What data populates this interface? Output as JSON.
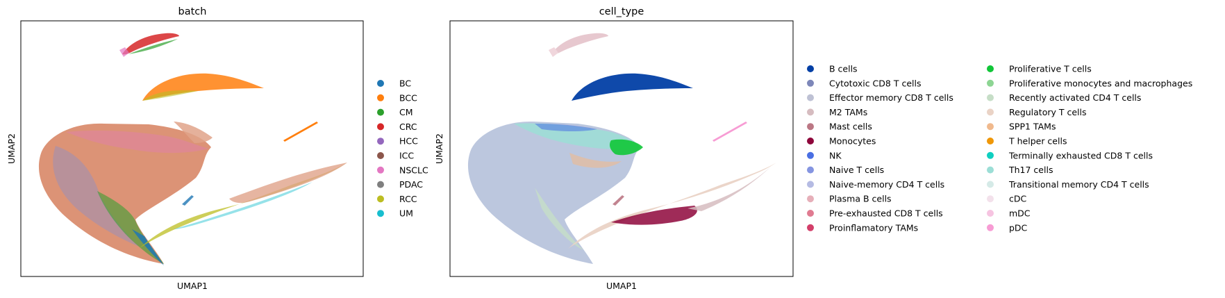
{
  "chart_data": [
    {
      "type": "scatter",
      "title": "batch",
      "xlabel": "UMAP1",
      "ylabel": "UMAP2",
      "grid": false,
      "legend_placement": "right, outside plot, 1 column",
      "legend": [
        {
          "label": "BC",
          "color": "#1f77b4"
        },
        {
          "label": "BCC",
          "color": "#ff7f0e"
        },
        {
          "label": "CM",
          "color": "#2ca02c"
        },
        {
          "label": "CRC",
          "color": "#d62728"
        },
        {
          "label": "HCC",
          "color": "#9467bd"
        },
        {
          "label": "ICC",
          "color": "#8c564b"
        },
        {
          "label": "NSCLC",
          "color": "#e377c2"
        },
        {
          "label": "PDAC",
          "color": "#7f7f7f"
        },
        {
          "label": "RCC",
          "color": "#bcbd22"
        },
        {
          "label": "UM",
          "color": "#17becf"
        }
      ]
    },
    {
      "type": "scatter",
      "title": "cell_type",
      "xlabel": "UMAP1",
      "ylabel": "UMAP2",
      "grid": false,
      "legend_placement": "right, outside plot, 2 columns",
      "legend": [
        {
          "label": "B cells",
          "color": "#023fa5"
        },
        {
          "label": "Cytotoxic CD8 T cells",
          "color": "#7d87b9"
        },
        {
          "label": "Effector memory CD8 T cells",
          "color": "#bec1d4"
        },
        {
          "label": "M2 TAMs",
          "color": "#d6bcc0"
        },
        {
          "label": "Mast cells",
          "color": "#bb7784"
        },
        {
          "label": "Monocytes",
          "color": "#8e063b"
        },
        {
          "label": "NK",
          "color": "#4a6fe3"
        },
        {
          "label": "Naive T cells",
          "color": "#8595e1"
        },
        {
          "label": "Naive-memory CD4 T cells",
          "color": "#b5bbe3"
        },
        {
          "label": "Plasma B cells",
          "color": "#e6afb9"
        },
        {
          "label": "Pre-exhausted CD8 T cells",
          "color": "#e07b91"
        },
        {
          "label": "Proinflamatory TAMs",
          "color": "#d33f6a"
        },
        {
          "label": "Proliferative T cells",
          "color": "#11c638"
        },
        {
          "label": "Proliferative monocytes and macrophages",
          "color": "#8dd593"
        },
        {
          "label": "Recently activated CD4 T cells",
          "color": "#c6dec7"
        },
        {
          "label": "Regulatory T cells",
          "color": "#ead3c6"
        },
        {
          "label": "SPP1 TAMs",
          "color": "#f0b98d"
        },
        {
          "label": "T helper cells",
          "color": "#ef9708"
        },
        {
          "label": "Terminally exhausted CD8 T cells",
          "color": "#0fcfc0"
        },
        {
          "label": "Th17 cells",
          "color": "#9cded6"
        },
        {
          "label": "Transitional memory CD4 T cells",
          "color": "#d5eae7"
        },
        {
          "label": "cDC",
          "color": "#f3e1eb"
        },
        {
          "label": "mDC",
          "color": "#f6c4e1"
        },
        {
          "label": "pDC",
          "color": "#f79cd4"
        }
      ]
    }
  ]
}
